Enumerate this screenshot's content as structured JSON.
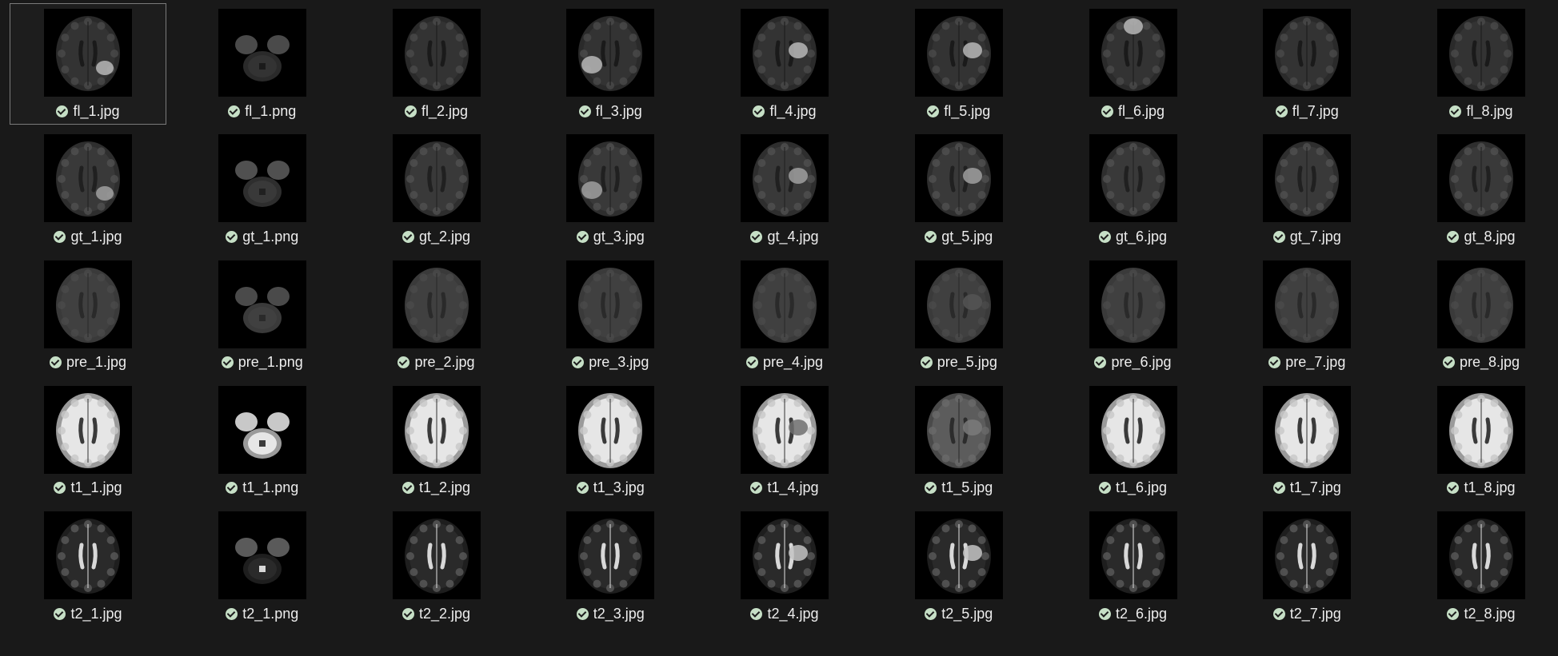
{
  "files": [
    {
      "name": "fl_1.jpg",
      "type": "fl",
      "view": "axial",
      "lesion": "right-post",
      "selected": true
    },
    {
      "name": "fl_1.png",
      "type": "fl",
      "view": "cerebellum"
    },
    {
      "name": "fl_2.jpg",
      "type": "fl",
      "view": "axial"
    },
    {
      "name": "fl_3.jpg",
      "type": "fl",
      "view": "axial",
      "lesion": "left-post"
    },
    {
      "name": "fl_4.jpg",
      "type": "fl",
      "view": "axial",
      "lesion": "right-mid"
    },
    {
      "name": "fl_5.jpg",
      "type": "fl",
      "view": "axial",
      "lesion": "right-mid"
    },
    {
      "name": "fl_6.jpg",
      "type": "fl",
      "view": "axial",
      "lesion": "front"
    },
    {
      "name": "fl_7.jpg",
      "type": "fl",
      "view": "axial"
    },
    {
      "name": "fl_8.jpg",
      "type": "fl",
      "view": "axial"
    },
    {
      "name": "gt_1.jpg",
      "type": "gt",
      "view": "axial",
      "lesion": "right-post"
    },
    {
      "name": "gt_1.png",
      "type": "gt",
      "view": "cerebellum"
    },
    {
      "name": "gt_2.jpg",
      "type": "gt",
      "view": "axial"
    },
    {
      "name": "gt_3.jpg",
      "type": "gt",
      "view": "axial",
      "lesion": "left-post"
    },
    {
      "name": "gt_4.jpg",
      "type": "gt",
      "view": "axial",
      "lesion": "right-mid"
    },
    {
      "name": "gt_5.jpg",
      "type": "gt",
      "view": "axial",
      "lesion": "right-mid"
    },
    {
      "name": "gt_6.jpg",
      "type": "gt",
      "view": "axial"
    },
    {
      "name": "gt_7.jpg",
      "type": "gt",
      "view": "axial"
    },
    {
      "name": "gt_8.jpg",
      "type": "gt",
      "view": "axial"
    },
    {
      "name": "pre_1.jpg",
      "type": "pre",
      "view": "axial"
    },
    {
      "name": "pre_1.png",
      "type": "pre",
      "view": "cerebellum"
    },
    {
      "name": "pre_2.jpg",
      "type": "pre",
      "view": "axial"
    },
    {
      "name": "pre_3.jpg",
      "type": "pre",
      "view": "axial"
    },
    {
      "name": "pre_4.jpg",
      "type": "pre",
      "view": "axial"
    },
    {
      "name": "pre_5.jpg",
      "type": "pre",
      "view": "axial",
      "lesion": "right-mid"
    },
    {
      "name": "pre_6.jpg",
      "type": "pre",
      "view": "axial"
    },
    {
      "name": "pre_7.jpg",
      "type": "pre",
      "view": "axial"
    },
    {
      "name": "pre_8.jpg",
      "type": "pre",
      "view": "axial"
    },
    {
      "name": "t1_1.jpg",
      "type": "t1",
      "view": "axial"
    },
    {
      "name": "t1_1.png",
      "type": "t1",
      "view": "cerebellum"
    },
    {
      "name": "t1_2.jpg",
      "type": "t1",
      "view": "axial"
    },
    {
      "name": "t1_3.jpg",
      "type": "t1",
      "view": "axial"
    },
    {
      "name": "t1_4.jpg",
      "type": "t1",
      "view": "axial",
      "lesion": "right-mid"
    },
    {
      "name": "t1_5.jpg",
      "type": "t1dark",
      "view": "axial",
      "lesion": "right-mid"
    },
    {
      "name": "t1_6.jpg",
      "type": "t1",
      "view": "axial"
    },
    {
      "name": "t1_7.jpg",
      "type": "t1",
      "view": "axial"
    },
    {
      "name": "t1_8.jpg",
      "type": "t1",
      "view": "axial"
    },
    {
      "name": "t2_1.jpg",
      "type": "t2",
      "view": "axial"
    },
    {
      "name": "t2_1.png",
      "type": "t2",
      "view": "cerebellum"
    },
    {
      "name": "t2_2.jpg",
      "type": "t2",
      "view": "axial"
    },
    {
      "name": "t2_3.jpg",
      "type": "t2",
      "view": "axial"
    },
    {
      "name": "t2_4.jpg",
      "type": "t2",
      "view": "axial",
      "lesion": "right-mid"
    },
    {
      "name": "t2_5.jpg",
      "type": "t2",
      "view": "axial",
      "lesion": "right-mid"
    },
    {
      "name": "t2_6.jpg",
      "type": "t2",
      "view": "axial"
    },
    {
      "name": "t2_7.jpg",
      "type": "t2",
      "view": "axial"
    },
    {
      "name": "t2_8.jpg",
      "type": "t2",
      "view": "axial"
    }
  ],
  "status_icon": "sync-complete-check-icon",
  "colors": {
    "background": "#191919",
    "label": "#ededed",
    "status_badge": "#c6dfc6",
    "selection_border": "#7a7a7a"
  }
}
